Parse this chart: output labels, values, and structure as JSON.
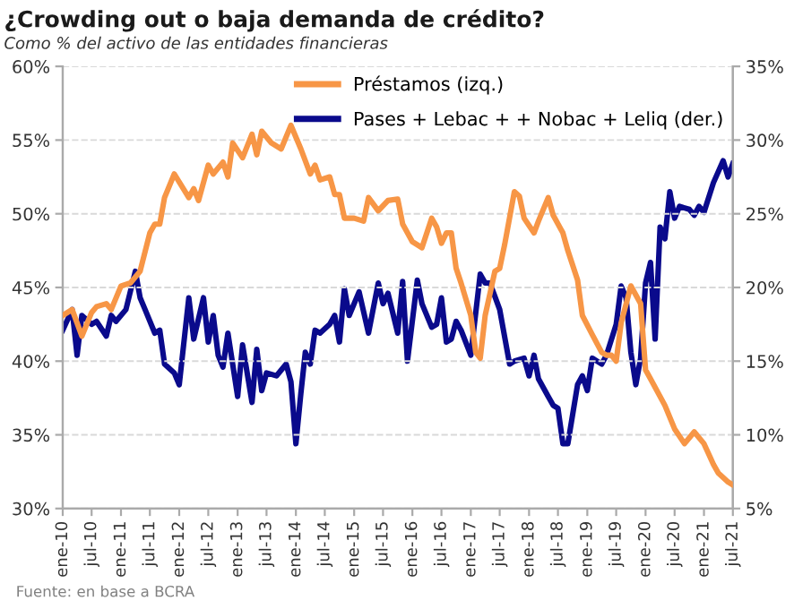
{
  "chart_data": {
    "type": "line",
    "title": "¿Crowding out o baja demanda de crédito?",
    "subtitle": "Como % del activo de las entidades financieras",
    "annotations": [
      "Fuente: en base a BCRA"
    ],
    "series": [
      {
        "name": "Préstamos (izq.)",
        "color": "#f79646",
        "x": [
          "2010-01",
          "2010-03",
          "2010-05",
          "2010-07",
          "2010-08",
          "2010-10",
          "2010-11",
          "2011-01",
          "2011-03",
          "2011-05",
          "2011-07",
          "2011-08",
          "2011-09",
          "2011-10",
          "2011-12",
          "2012-03",
          "2012-04",
          "2012-05",
          "2012-07",
          "2012-08",
          "2012-10",
          "2012-11",
          "2012-12",
          "2013-02",
          "2013-04",
          "2013-05",
          "2013-06",
          "2013-08",
          "2013-10",
          "2013-12",
          "2014-02",
          "2014-04",
          "2014-05",
          "2014-06",
          "2014-08",
          "2014-09",
          "2014-10",
          "2014-11",
          "2015-01",
          "2015-03",
          "2015-04",
          "2015-06",
          "2015-08",
          "2015-10",
          "2015-11",
          "2016-01",
          "2016-03",
          "2016-05",
          "2016-06",
          "2016-07",
          "2016-08",
          "2016-09",
          "2016-10",
          "2016-11",
          "2017-01",
          "2017-02",
          "2017-03",
          "2017-04",
          "2017-06",
          "2017-07",
          "2017-08",
          "2017-10",
          "2017-11",
          "2017-12",
          "2018-02",
          "2018-03",
          "2018-05",
          "2018-06",
          "2018-08",
          "2018-09",
          "2018-11",
          "2018-12",
          "2019-02",
          "2019-04",
          "2019-05",
          "2019-06",
          "2019-07",
          "2019-08",
          "2019-10",
          "2019-12",
          "2020-01",
          "2020-02",
          "2020-05",
          "2020-07",
          "2020-09",
          "2020-11",
          "2021-01",
          "2021-03",
          "2021-04",
          "2021-06",
          "2021-07"
        ],
        "values": [
          43.1,
          43.5,
          41.7,
          43.3,
          43.7,
          43.9,
          43.5,
          45.1,
          45.3,
          46.1,
          48.7,
          49.3,
          49.3,
          51.1,
          52.7,
          51.1,
          51.7,
          50.9,
          53.3,
          52.7,
          53.5,
          52.5,
          54.8,
          53.8,
          55.4,
          54.0,
          55.6,
          54.8,
          54.4,
          56.0,
          54.4,
          52.7,
          53.3,
          52.3,
          52.5,
          51.3,
          51.3,
          49.7,
          49.7,
          49.5,
          51.1,
          50.2,
          50.9,
          51.0,
          49.3,
          48.1,
          47.7,
          49.7,
          49.1,
          48.0,
          48.7,
          48.7,
          46.3,
          45.3,
          43.1,
          40.6,
          40.2,
          43.1,
          46.1,
          46.3,
          47.9,
          51.5,
          51.2,
          49.7,
          48.7,
          49.5,
          51.1,
          49.9,
          48.7,
          47.5,
          45.5,
          43.1,
          41.8,
          40.6,
          40.4,
          40.4,
          40.0,
          42.6,
          45.1,
          43.9,
          39.4,
          38.8,
          37.0,
          35.4,
          34.4,
          35.2,
          34.4,
          33.0,
          32.4,
          31.8,
          31.6
        ]
      },
      {
        "name": "Pases + Lebac + + Nobac + Leliq (der.)",
        "color": "#0a0a8c",
        "axis": "y2",
        "x": [
          "2010-01",
          "2010-03",
          "2010-04",
          "2010-05",
          "2010-07",
          "2010-08",
          "2010-10",
          "2010-11",
          "2010-12",
          "2011-02",
          "2011-04",
          "2011-05",
          "2011-06",
          "2011-08",
          "2011-09",
          "2011-10",
          "2011-12",
          "2012-01",
          "2012-03",
          "2012-04",
          "2012-06",
          "2012-07",
          "2012-08",
          "2012-09",
          "2012-10",
          "2012-11",
          "2013-01",
          "2013-02",
          "2013-04",
          "2013-05",
          "2013-06",
          "2013-07",
          "2013-09",
          "2013-11",
          "2013-12",
          "2014-01",
          "2014-02",
          "2014-03",
          "2014-04",
          "2014-05",
          "2014-06",
          "2014-08",
          "2014-09",
          "2014-10",
          "2014-11",
          "2014-12",
          "2015-02",
          "2015-04",
          "2015-06",
          "2015-07",
          "2015-08",
          "2015-10",
          "2015-11",
          "2015-12",
          "2016-02",
          "2016-03",
          "2016-05",
          "2016-06",
          "2016-07",
          "2016-08",
          "2016-09",
          "2016-10",
          "2016-11",
          "2017-01",
          "2017-03",
          "2017-04",
          "2017-05",
          "2017-07",
          "2017-09",
          "2017-10",
          "2017-12",
          "2018-01",
          "2018-02",
          "2018-03",
          "2018-05",
          "2018-06",
          "2018-07",
          "2018-08",
          "2018-09",
          "2018-11",
          "2018-12",
          "2019-01",
          "2019-02",
          "2019-04",
          "2019-05",
          "2019-07",
          "2019-08",
          "2019-09",
          "2019-10",
          "2019-11",
          "2019-12",
          "2020-01",
          "2020-02",
          "2020-03",
          "2020-04",
          "2020-05",
          "2020-06",
          "2020-07",
          "2020-08",
          "2020-10",
          "2020-11",
          "2020-12",
          "2021-01",
          "2021-03",
          "2021-05",
          "2021-06",
          "2021-07"
        ],
        "values": [
          17.1,
          18.5,
          15.4,
          18.1,
          17.5,
          17.7,
          16.7,
          18.1,
          17.7,
          18.5,
          21.1,
          19.3,
          18.5,
          16.9,
          17.1,
          14.8,
          14.2,
          13.4,
          19.3,
          16.5,
          19.3,
          16.3,
          18.1,
          15.4,
          14.6,
          16.9,
          12.6,
          16.1,
          12.2,
          15.8,
          13.0,
          14.2,
          14.0,
          14.8,
          13.6,
          9.4,
          12.8,
          15.6,
          14.8,
          17.1,
          16.9,
          17.5,
          18.1,
          16.3,
          19.9,
          18.1,
          19.7,
          16.9,
          20.3,
          18.9,
          19.6,
          16.9,
          20.4,
          15.0,
          20.5,
          18.9,
          17.3,
          17.5,
          19.3,
          16.3,
          16.5,
          17.7,
          17.1,
          15.4,
          20.9,
          20.3,
          20.3,
          18.5,
          14.8,
          15.0,
          15.2,
          14.0,
          15.4,
          13.8,
          12.6,
          12.0,
          11.8,
          9.4,
          9.4,
          13.4,
          14.0,
          13.0,
          15.2,
          14.8,
          15.4,
          17.5,
          20.1,
          19.3,
          15.6,
          13.4,
          15.2,
          20.3,
          21.7,
          16.5,
          24.1,
          23.3,
          26.5,
          24.7,
          25.5,
          25.3,
          24.9,
          25.5,
          25.1,
          27.1,
          28.6,
          27.5,
          28.4
        ]
      }
    ],
    "xlim": [
      "2010-01",
      "2021-07"
    ],
    "xticks": [
      {
        "value": "2010-01",
        "label": "ene-10"
      },
      {
        "value": "2010-07",
        "label": "jul-10"
      },
      {
        "value": "2011-01",
        "label": "ene-11"
      },
      {
        "value": "2011-07",
        "label": "jul-11"
      },
      {
        "value": "2012-01",
        "label": "ene-12"
      },
      {
        "value": "2012-07",
        "label": "jul-12"
      },
      {
        "value": "2013-01",
        "label": "ene-13"
      },
      {
        "value": "2013-07",
        "label": "jul-13"
      },
      {
        "value": "2014-01",
        "label": "ene-14"
      },
      {
        "value": "2014-07",
        "label": "jul-14"
      },
      {
        "value": "2015-01",
        "label": "ene-15"
      },
      {
        "value": "2015-07",
        "label": "jul-15"
      },
      {
        "value": "2016-01",
        "label": "ene-16"
      },
      {
        "value": "2016-07",
        "label": "jul-16"
      },
      {
        "value": "2017-01",
        "label": "ene-17"
      },
      {
        "value": "2017-07",
        "label": "jul-17"
      },
      {
        "value": "2018-01",
        "label": "ene-18"
      },
      {
        "value": "2018-07",
        "label": "jul-18"
      },
      {
        "value": "2019-01",
        "label": "ene-19"
      },
      {
        "value": "2019-07",
        "label": "jul-19"
      },
      {
        "value": "2020-01",
        "label": "ene-20"
      },
      {
        "value": "2020-07",
        "label": "jul-20"
      },
      {
        "value": "2021-01",
        "label": "ene-21"
      },
      {
        "value": "2021-07",
        "label": "jul-21"
      }
    ],
    "ylim": [
      30,
      60
    ],
    "yticks": [
      {
        "value": 30,
        "label": "30%"
      },
      {
        "value": 35,
        "label": "35%"
      },
      {
        "value": 40,
        "label": "40%"
      },
      {
        "value": 45,
        "label": "45%"
      },
      {
        "value": 50,
        "label": "50%"
      },
      {
        "value": 55,
        "label": "55%"
      },
      {
        "value": 60,
        "label": "60%"
      }
    ],
    "y2lim": [
      5,
      35
    ],
    "y2ticks": [
      {
        "value": 5,
        "label": "5%"
      },
      {
        "value": 10,
        "label": "10%"
      },
      {
        "value": 15,
        "label": "15%"
      },
      {
        "value": 20,
        "label": "20%"
      },
      {
        "value": 25,
        "label": "25%"
      },
      {
        "value": 30,
        "label": "30%"
      },
      {
        "value": 35,
        "label": "35%"
      }
    ],
    "grid": "y",
    "legend": "top right",
    "marker": "none",
    "line_style": "solid"
  }
}
